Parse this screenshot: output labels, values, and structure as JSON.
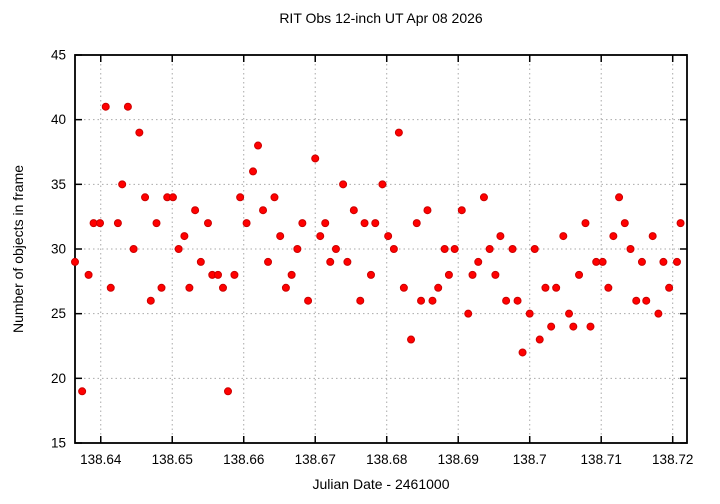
{
  "chart_data": {
    "type": "scatter",
    "title": "RIT Obs 12-inch UT Apr 08 2026",
    "xlabel": "Julian Date - 2461000",
    "ylabel": "Number of objects in frame",
    "xlim": [
      138.6364,
      138.722
    ],
    "ylim": [
      15,
      45
    ],
    "grid": true,
    "legend": "none",
    "border": true,
    "marker": {
      "shape": "filled-circle",
      "color": "#ff0000",
      "edge_color": "#cc0000",
      "radius_px": 3.5
    },
    "grid_color": "#a9a9a9",
    "axis_color": "#000000",
    "xticks": [
      {
        "v": 138.64,
        "label": "138.64"
      },
      {
        "v": 138.65,
        "label": "138.65"
      },
      {
        "v": 138.66,
        "label": "138.66"
      },
      {
        "v": 138.67,
        "label": "138.67"
      },
      {
        "v": 138.68,
        "label": "138.68"
      },
      {
        "v": 138.69,
        "label": "138.69"
      },
      {
        "v": 138.7,
        "label": "138.7"
      },
      {
        "v": 138.71,
        "label": "138.71"
      },
      {
        "v": 138.72,
        "label": "138.72"
      }
    ],
    "yticks": [
      {
        "v": 15,
        "label": "15"
      },
      {
        "v": 20,
        "label": "20"
      },
      {
        "v": 25,
        "label": "25"
      },
      {
        "v": 30,
        "label": "30"
      },
      {
        "v": 35,
        "label": "35"
      },
      {
        "v": 40,
        "label": "40"
      },
      {
        "v": 45,
        "label": "45"
      }
    ],
    "series": [
      {
        "name": "objects-in-frame",
        "points": [
          [
            138.6364,
            29
          ],
          [
            138.6374,
            19
          ],
          [
            138.6383,
            28
          ],
          [
            138.639,
            32
          ],
          [
            138.6399,
            32
          ],
          [
            138.6407,
            41
          ],
          [
            138.6414,
            27
          ],
          [
            138.6424,
            32
          ],
          [
            138.643,
            35
          ],
          [
            138.6438,
            41
          ],
          [
            138.6446,
            30
          ],
          [
            138.6454,
            39
          ],
          [
            138.6462,
            34
          ],
          [
            138.647,
            26
          ],
          [
            138.6478,
            32
          ],
          [
            138.6485,
            27
          ],
          [
            138.6493,
            34
          ],
          [
            138.6501,
            34
          ],
          [
            138.6509,
            30
          ],
          [
            138.6517,
            31
          ],
          [
            138.6524,
            27
          ],
          [
            138.6532,
            33
          ],
          [
            138.654,
            29
          ],
          [
            138.655,
            32
          ],
          [
            138.6556,
            28
          ],
          [
            138.6564,
            28
          ],
          [
            138.6571,
            27
          ],
          [
            138.6578,
            19
          ],
          [
            138.6587,
            28
          ],
          [
            138.6595,
            34
          ],
          [
            138.6604,
            32
          ],
          [
            138.6613,
            36
          ],
          [
            138.662,
            38
          ],
          [
            138.6627,
            33
          ],
          [
            138.6634,
            29
          ],
          [
            138.6643,
            34
          ],
          [
            138.6651,
            31
          ],
          [
            138.6659,
            27
          ],
          [
            138.6667,
            28
          ],
          [
            138.6675,
            30
          ],
          [
            138.6682,
            32
          ],
          [
            138.669,
            26
          ],
          [
            138.67,
            37
          ],
          [
            138.6707,
            31
          ],
          [
            138.6714,
            32
          ],
          [
            138.6721,
            29
          ],
          [
            138.6729,
            30
          ],
          [
            138.6739,
            35
          ],
          [
            138.6745,
            29
          ],
          [
            138.6754,
            33
          ],
          [
            138.6763,
            26
          ],
          [
            138.6769,
            32
          ],
          [
            138.6778,
            28
          ],
          [
            138.6784,
            32
          ],
          [
            138.6794,
            35
          ],
          [
            138.6802,
            31
          ],
          [
            138.681,
            30
          ],
          [
            138.6817,
            39
          ],
          [
            138.6824,
            27
          ],
          [
            138.6834,
            23
          ],
          [
            138.6842,
            32
          ],
          [
            138.6848,
            26
          ],
          [
            138.6857,
            33
          ],
          [
            138.6864,
            26
          ],
          [
            138.6872,
            27
          ],
          [
            138.6881,
            30
          ],
          [
            138.6887,
            28
          ],
          [
            138.6895,
            30
          ],
          [
            138.6905,
            33
          ],
          [
            138.6914,
            25
          ],
          [
            138.692,
            28
          ],
          [
            138.6928,
            29
          ],
          [
            138.6936,
            34
          ],
          [
            138.6944,
            30
          ],
          [
            138.6952,
            28
          ],
          [
            138.6959,
            31
          ],
          [
            138.6967,
            26
          ],
          [
            138.6976,
            30
          ],
          [
            138.6983,
            26
          ],
          [
            138.699,
            22
          ],
          [
            138.7,
            25
          ],
          [
            138.7007,
            30
          ],
          [
            138.7014,
            23
          ],
          [
            138.7022,
            27
          ],
          [
            138.703,
            24
          ],
          [
            138.7037,
            27
          ],
          [
            138.7047,
            31
          ],
          [
            138.7055,
            25
          ],
          [
            138.7061,
            24
          ],
          [
            138.7069,
            28
          ],
          [
            138.7078,
            32
          ],
          [
            138.7085,
            24
          ],
          [
            138.7093,
            29
          ],
          [
            138.7102,
            29
          ],
          [
            138.711,
            27
          ],
          [
            138.7117,
            31
          ],
          [
            138.7125,
            34
          ],
          [
            138.7133,
            32
          ],
          [
            138.7141,
            30
          ],
          [
            138.7149,
            26
          ],
          [
            138.7157,
            29
          ],
          [
            138.7163,
            26
          ],
          [
            138.7172,
            31
          ],
          [
            138.718,
            25
          ],
          [
            138.7187,
            29
          ],
          [
            138.7195,
            27
          ],
          [
            138.7206,
            29
          ],
          [
            138.7211,
            32
          ]
        ]
      }
    ]
  }
}
